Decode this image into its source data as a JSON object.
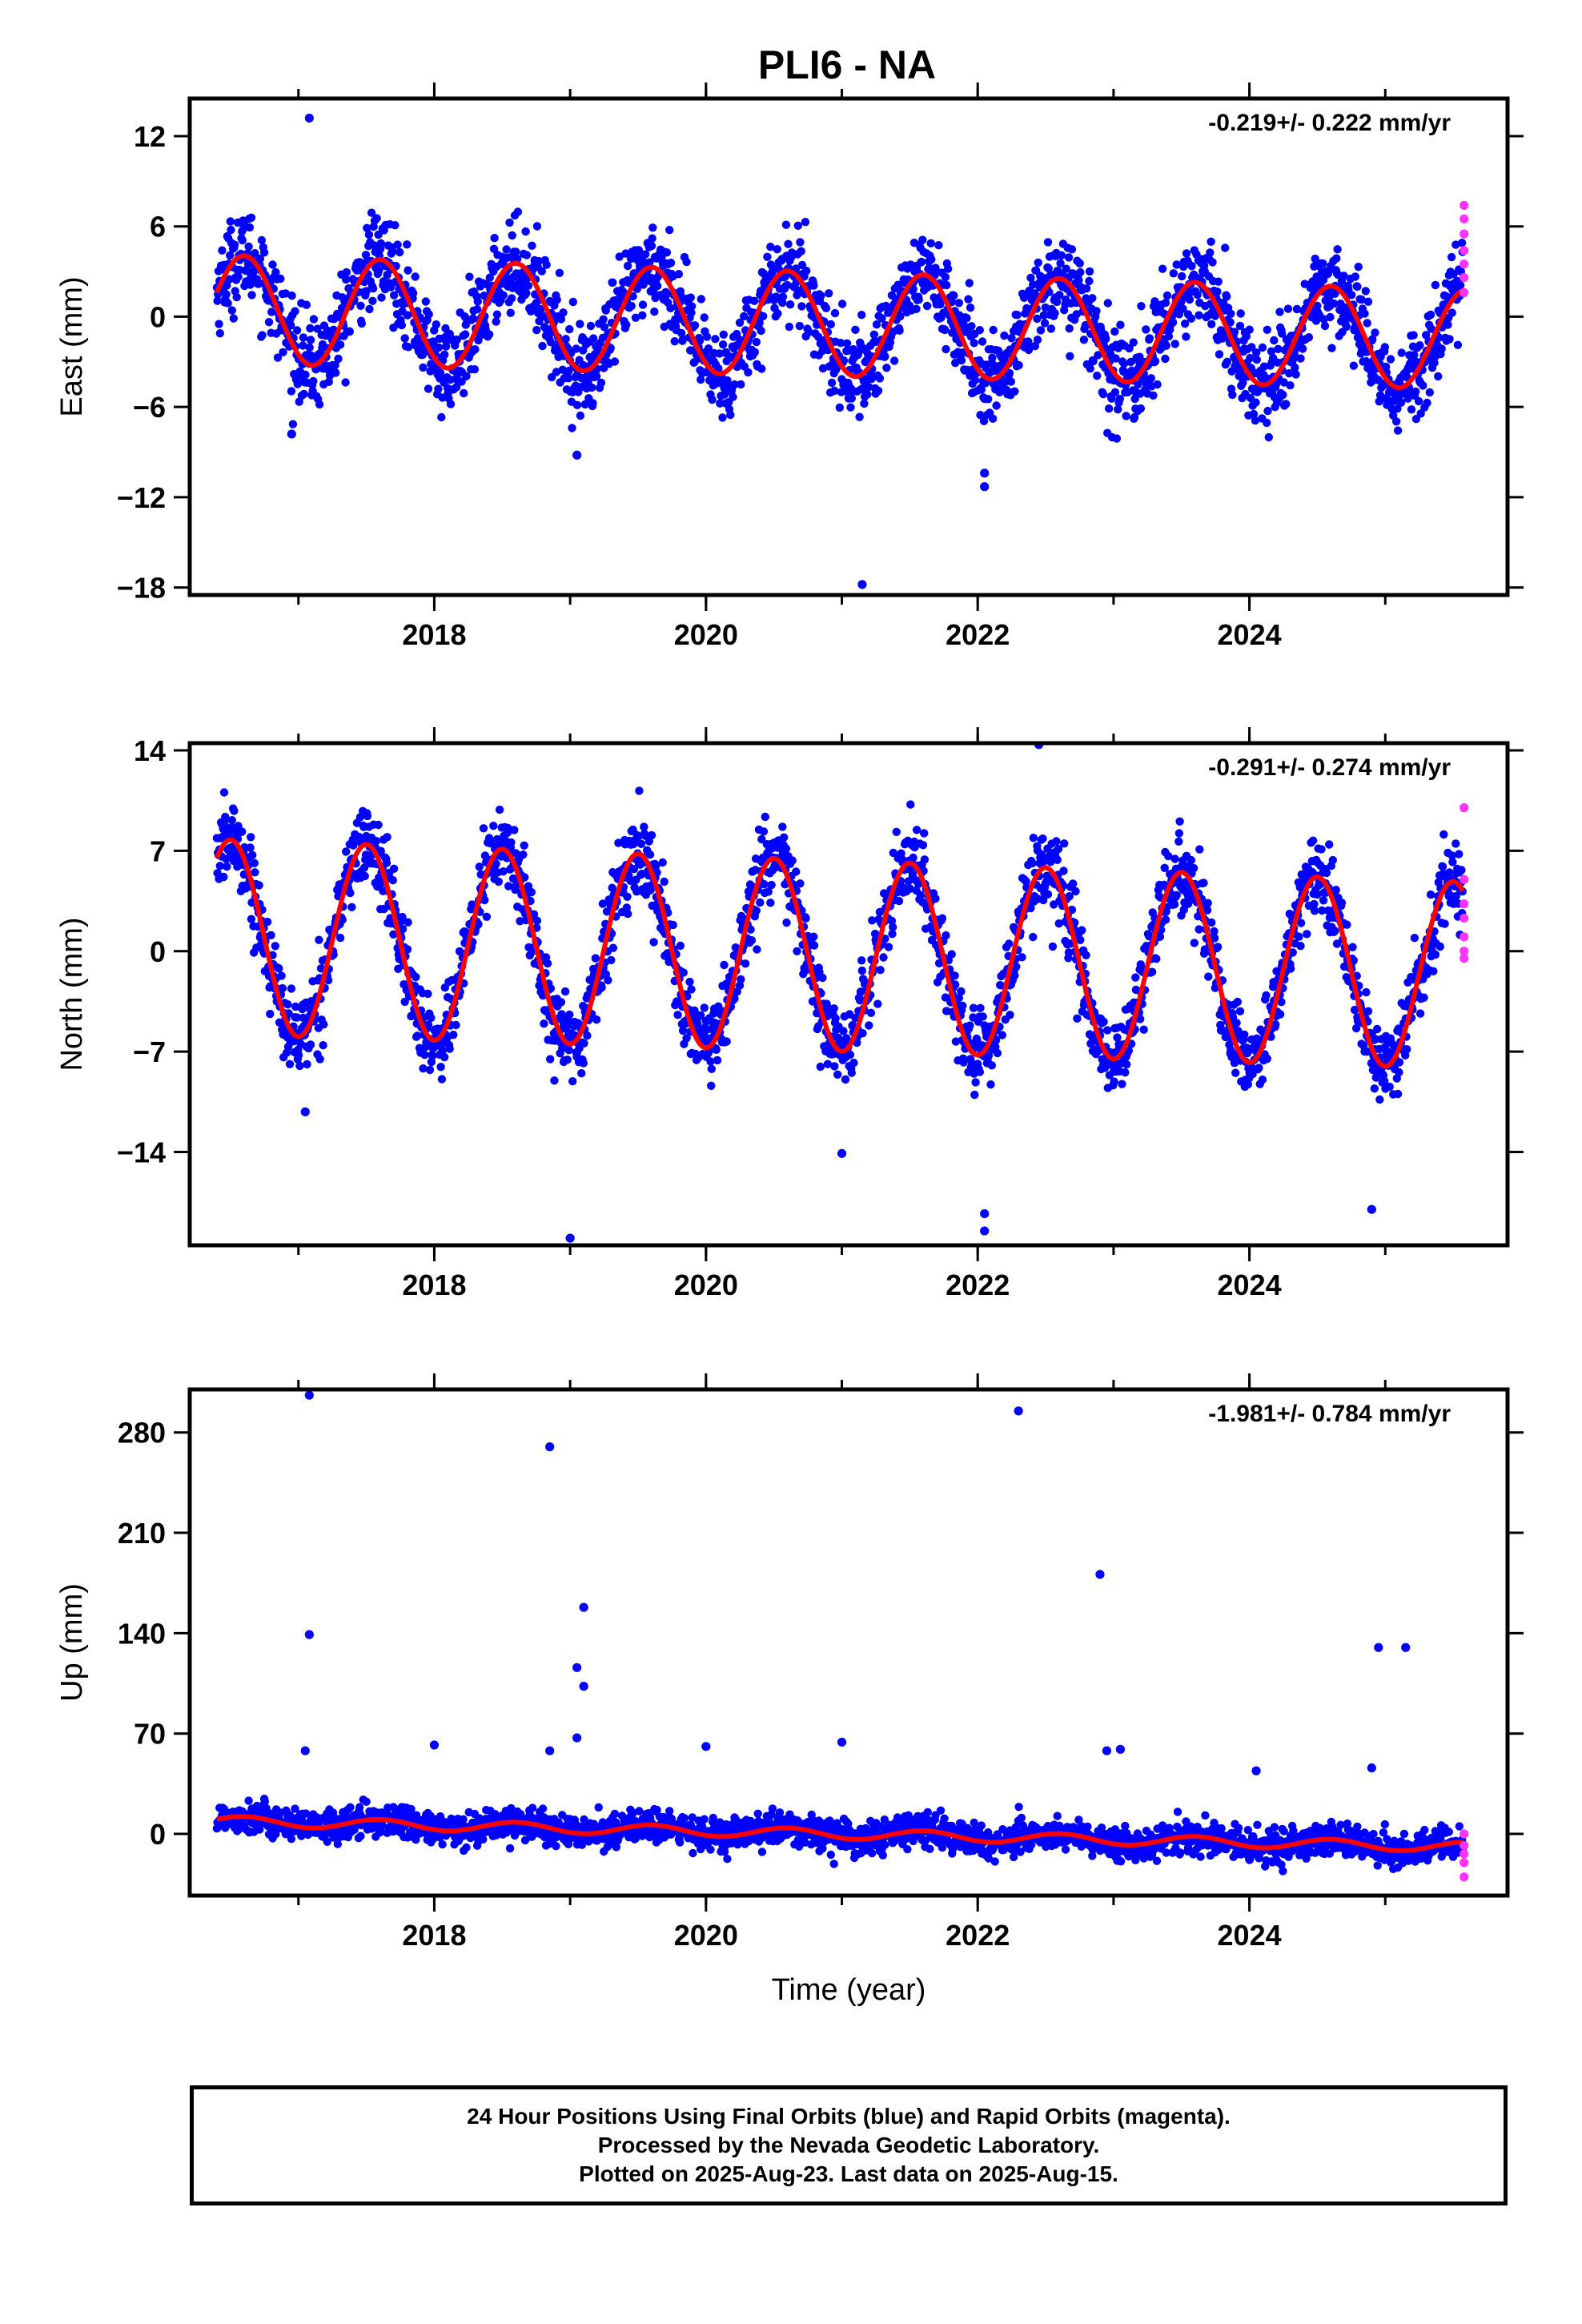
{
  "title": "PLI6 - NA",
  "colors": {
    "final_orbits": "#0000ff",
    "rapid_orbits": "#ff33ff",
    "model_fit": "#ff0000",
    "frame": "#000000"
  },
  "chart_data": [
    {
      "type": "scatter",
      "panel": "east",
      "ylabel": "East (mm)",
      "xlabel": "",
      "rate_text": "-0.219+/- 0.222 mm/yr",
      "xlim": [
        2016.2,
        2025.9
      ],
      "ylim": [
        -18.5,
        14.5
      ],
      "xticks": [
        "2018",
        "2020",
        "2022",
        "2024"
      ],
      "xtick_values": [
        2018,
        2020,
        2022,
        2024
      ],
      "yticks": [
        "12",
        "6",
        "0",
        "−6",
        "−12",
        "−18"
      ],
      "ytick_values": [
        12,
        6,
        0,
        -6,
        -12,
        -18
      ],
      "model": {
        "start": 2016.4,
        "end": 2025.57,
        "offset": 0.5,
        "trend_per_yr": -0.219,
        "amplitude_start": 3.6,
        "amplitude_end": 3.3,
        "peak_phase": 0.6
      },
      "scatter_noise_sd": 1.5,
      "outliers": [
        [
          2017.08,
          13.2
        ],
        [
          2021.15,
          -17.8
        ],
        [
          2022.05,
          -11.3
        ],
        [
          2022.05,
          -10.4
        ],
        [
          2019.05,
          -9.2
        ],
        [
          2016.95,
          -7.8
        ]
      ],
      "rapid_points": [
        [
          2025.58,
          7.4
        ],
        [
          2025.58,
          6.5
        ],
        [
          2025.58,
          5.5
        ],
        [
          2025.58,
          4.4
        ],
        [
          2025.58,
          3.5
        ],
        [
          2025.58,
          2.6
        ],
        [
          2025.58,
          1.6
        ]
      ]
    },
    {
      "type": "scatter",
      "panel": "north",
      "ylabel": "North (mm)",
      "xlabel": "",
      "rate_text": "-0.291+/- 0.274 mm/yr",
      "xlim": [
        2016.2,
        2025.9
      ],
      "ylim": [
        -20.5,
        14.5
      ],
      "xticks": [
        "2018",
        "2020",
        "2022",
        "2024"
      ],
      "xtick_values": [
        2018,
        2020,
        2022,
        2024
      ],
      "yticks": [
        "14",
        "7",
        "0",
        "−7",
        "−14"
      ],
      "ytick_values": [
        14,
        7,
        0,
        -7,
        -14
      ],
      "model": {
        "start": 2016.4,
        "end": 2025.57,
        "offset": 1.0,
        "trend_per_yr": -0.291,
        "amplitude_start": 6.8,
        "amplitude_end": 6.5,
        "peak_phase": 0.5
      },
      "scatter_noise_sd": 1.4,
      "outliers": [
        [
          2022.45,
          14.4
        ],
        [
          2019.0,
          -20.0
        ],
        [
          2022.05,
          -19.5
        ],
        [
          2022.05,
          -18.3
        ],
        [
          2024.9,
          -18.0
        ],
        [
          2017.05,
          -11.2
        ],
        [
          2021.0,
          -14.1
        ]
      ],
      "rapid_points": [
        [
          2025.58,
          10.0
        ],
        [
          2025.58,
          5.0
        ],
        [
          2025.58,
          3.3
        ],
        [
          2025.58,
          2.3
        ],
        [
          2025.58,
          1.0
        ],
        [
          2025.58,
          0.0
        ],
        [
          2025.58,
          -0.5
        ]
      ]
    },
    {
      "type": "scatter",
      "panel": "up",
      "ylabel": "Up (mm)",
      "xlabel": "Time (year)",
      "rate_text": "-1.981+/- 0.784 mm/yr",
      "xlim": [
        2016.2,
        2025.9
      ],
      "ylim": [
        -43,
        310
      ],
      "xticks": [
        "2018",
        "2020",
        "2022",
        "2024"
      ],
      "xtick_values": [
        2018,
        2020,
        2022,
        2024
      ],
      "yticks": [
        "280",
        "210",
        "140",
        "70",
        "0"
      ],
      "ytick_values": [
        280,
        210,
        140,
        70,
        0
      ],
      "model": {
        "start": 2016.4,
        "end": 2025.57,
        "offset": 9.0,
        "trend_per_yr": -1.981,
        "amplitude_start": 3.5,
        "amplitude_end": 3.5,
        "peak_phase": 0.6
      },
      "scatter_noise_sd": 5.5,
      "outliers": [
        [
          2017.08,
          306
        ],
        [
          2022.3,
          295
        ],
        [
          2018.85,
          270
        ],
        [
          2022.9,
          181
        ],
        [
          2019.1,
          158
        ],
        [
          2017.08,
          139
        ],
        [
          2024.95,
          130
        ],
        [
          2025.15,
          130
        ],
        [
          2019.05,
          116
        ],
        [
          2019.1,
          103
        ],
        [
          2018.0,
          62
        ],
        [
          2019.05,
          67
        ],
        [
          2020.0,
          61
        ],
        [
          2021.0,
          64
        ],
        [
          2022.95,
          58
        ],
        [
          2023.05,
          59
        ],
        [
          2017.05,
          58
        ],
        [
          2018.85,
          58
        ],
        [
          2024.9,
          46
        ],
        [
          2024.05,
          44
        ]
      ],
      "rapid_points": [
        [
          2025.58,
          0
        ],
        [
          2025.58,
          -8
        ],
        [
          2025.58,
          -14
        ],
        [
          2025.58,
          -20
        ],
        [
          2025.58,
          -30
        ]
      ]
    }
  ],
  "footer": {
    "line1": "24 Hour Positions Using Final Orbits (blue) and Rapid Orbits (magenta).",
    "line2": "Processed by the Nevada Geodetic Laboratory.",
    "line3": "Plotted on 2025-Aug-23. Last data on 2025-Aug-15."
  }
}
